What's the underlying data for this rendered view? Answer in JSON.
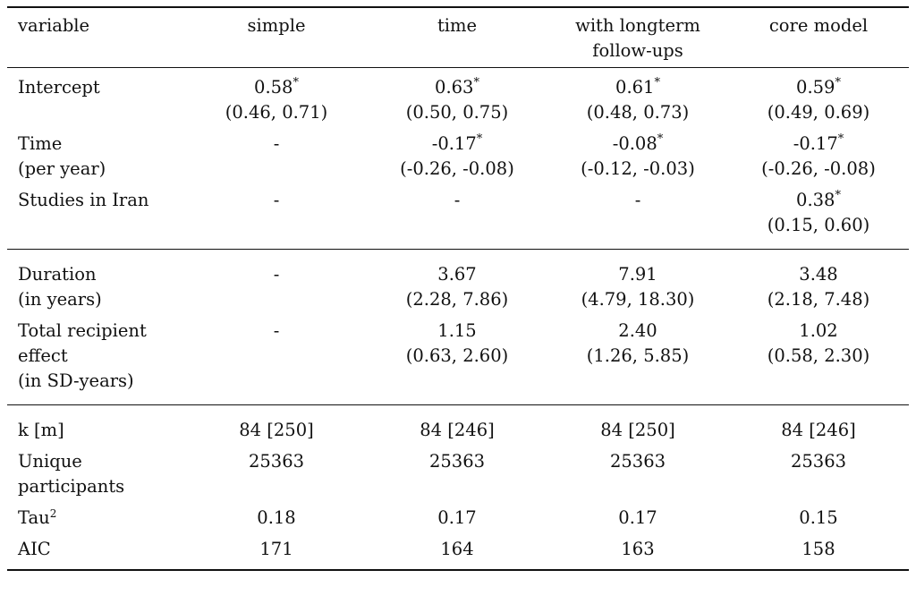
{
  "header": {
    "variable": "variable",
    "columns": [
      "simple",
      "time",
      "with longterm\nfollow-ups",
      "core model"
    ]
  },
  "section1": [
    {
      "label": [
        "Intercept"
      ],
      "cells": [
        [
          "0.58*",
          "(0.46, 0.71)"
        ],
        [
          "0.63*",
          "(0.50, 0.75)"
        ],
        [
          "0.61*",
          "(0.48, 0.73)"
        ],
        [
          "0.59*",
          "(0.49, 0.69)"
        ]
      ]
    },
    {
      "label": [
        "Time",
        "(per year)"
      ],
      "cells": [
        [
          "-"
        ],
        [
          "-0.17*",
          "(-0.26, -0.08)"
        ],
        [
          "-0.08*",
          "(-0.12, -0.03)"
        ],
        [
          "-0.17*",
          "(-0.26, -0.08)"
        ]
      ]
    },
    {
      "label": [
        "Studies in Iran"
      ],
      "cells": [
        [
          "-"
        ],
        [
          "-"
        ],
        [
          "-"
        ],
        [
          "0.38*",
          "(0.15, 0.60)"
        ]
      ]
    }
  ],
  "section2": [
    {
      "label": [
        "Duration",
        "(in years)"
      ],
      "cells": [
        [
          "-"
        ],
        [
          "3.67",
          "(2.28, 7.86)"
        ],
        [
          "7.91",
          "(4.79, 18.30)"
        ],
        [
          "3.48",
          "(2.18, 7.48)"
        ]
      ]
    },
    {
      "label": [
        "Total recipient",
        "effect",
        "(in SD-years)"
      ],
      "cells": [
        [
          "-"
        ],
        [
          "1.15",
          "(0.63, 2.60)"
        ],
        [
          "2.40",
          "(1.26, 5.85)"
        ],
        [
          "1.02",
          "(0.58, 2.30)"
        ]
      ]
    }
  ],
  "section3": [
    {
      "label": [
        "k [m]"
      ],
      "cells": [
        [
          "84 [250]"
        ],
        [
          "84 [246]"
        ],
        [
          "84 [250]"
        ],
        [
          "84 [246]"
        ]
      ]
    },
    {
      "label": [
        "Unique",
        "participants"
      ],
      "cells": [
        [
          "25363"
        ],
        [
          "25363"
        ],
        [
          "25363"
        ],
        [
          "25363"
        ]
      ]
    },
    {
      "label": [
        "Tau^2"
      ],
      "cells": [
        [
          "0.18"
        ],
        [
          "0.17"
        ],
        [
          "0.17"
        ],
        [
          "0.15"
        ]
      ]
    },
    {
      "label": [
        "AIC"
      ],
      "cells": [
        [
          "171"
        ],
        [
          "164"
        ],
        [
          "163"
        ],
        [
          "158"
        ]
      ]
    }
  ]
}
